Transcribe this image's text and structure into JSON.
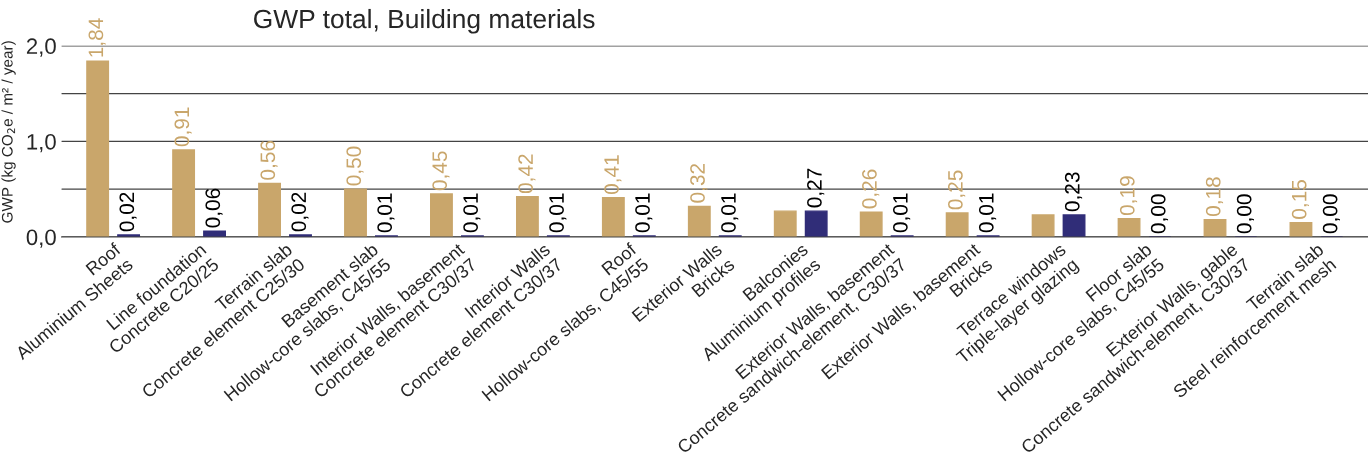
{
  "chart_data": {
    "type": "bar",
    "title": "GWP total, Building materials",
    "ylabel": "GWP (kg CO$_{2}$e / m² / year)",
    "categories": [
      "Roof\nAluminium Sheets",
      "Line foundation\nConcrete C20/25",
      "Terrain slab\nConcrete element C25/30",
      "Basement slab\nHollow-core slabs, C45/55",
      "Interior Walls, basement\nConcrete element C30/37",
      "Interior Walls\nConcrete element C30/37",
      "Roof\nHollow-core slabs, C45/55",
      "Exterior Walls\nBricks",
      "Balconies\nAluminium profiles",
      "Exterior Walls, basement\nConcrete sandwich-element, C30/37",
      "Exterior Walls, basement\nBricks",
      "Terrace windows\nTriple-layer glazing",
      "Floor slab\nHollow-core slabs, C45/55",
      "Exterior Walls, gable\nConcrete sandwich-element, C30/37",
      "Terrain slab\nSteel reinforcement mesh"
    ],
    "series": [
      {
        "color": "#c9a66b",
        "values": [
          1.84,
          0.91,
          0.56,
          0.5,
          0.45,
          0.42,
          0.41,
          0.32,
          0.27,
          0.26,
          0.25,
          0.23,
          0.19,
          0.18,
          0.15
        ],
        "value_labels": [
          "1,84",
          "0,91",
          "0,56",
          "0,50",
          "0,45",
          "0,42",
          "0,41",
          "0,32",
          null,
          "0,26",
          "0,25",
          null,
          "0,19",
          "0,18",
          "0,15"
        ]
      },
      {
        "color": "#302d78",
        "values": [
          0.02,
          0.06,
          0.02,
          0.01,
          0.01,
          0.01,
          0.01,
          0.01,
          0.27,
          0.01,
          0.01,
          0.23,
          0.0,
          0.0,
          0.0
        ],
        "value_labels": [
          "0,02",
          "0,06",
          "0,02",
          "0,01",
          "0,01",
          "0,01",
          "0,01",
          "0,01",
          "0,27",
          "0,01",
          "0,01",
          "0,23",
          "0,00",
          "0,00",
          "0,00"
        ]
      }
    ],
    "ylim": [
      0,
      2.0
    ],
    "yticks": [
      {
        "value": 0,
        "label": "0,0"
      },
      {
        "value": 0.5,
        "label": null
      },
      {
        "value": 1,
        "label": "1,0"
      },
      {
        "value": 1.5,
        "label": null
      },
      {
        "value": 2,
        "label": "2,0"
      }
    ],
    "grid": "y",
    "legend": false
  }
}
